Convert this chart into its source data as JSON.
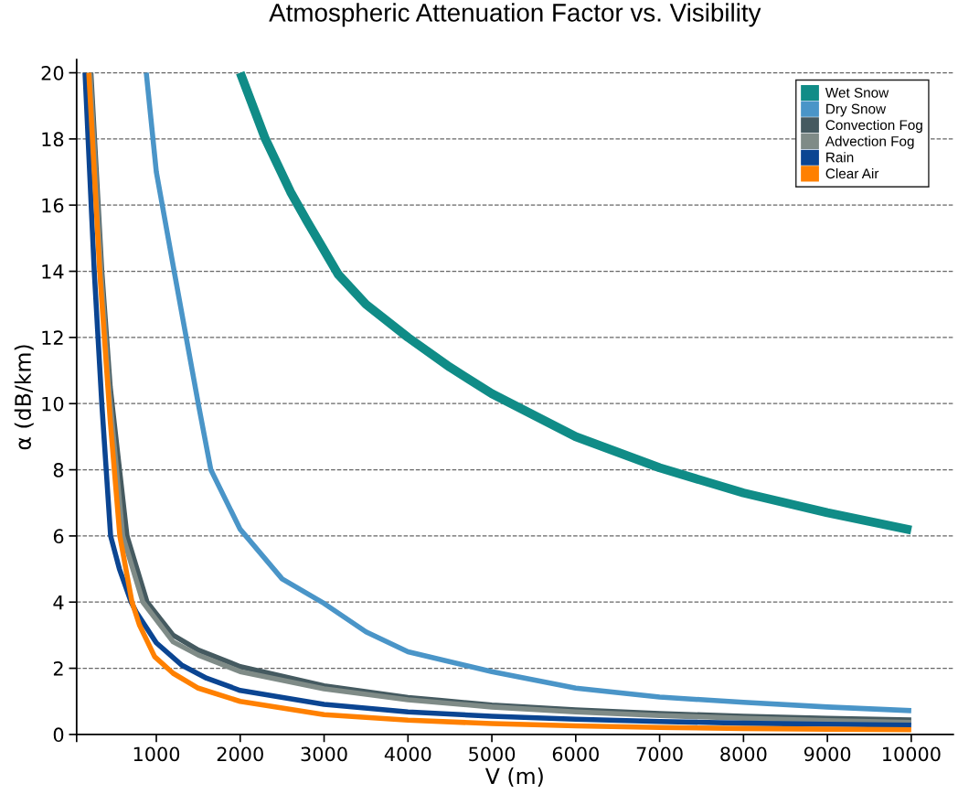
{
  "chart_data": {
    "type": "line",
    "title": "Atmospheric Attenuation Factor vs. Visibility",
    "xlabel": "V (m)",
    "ylabel": "α (dB/km)",
    "xlim": [
      50,
      10500
    ],
    "ylim": [
      0,
      20.4
    ],
    "xticks": [
      {
        "value": 50,
        "label": null
      },
      1000,
      2000,
      3000,
      4000,
      5000,
      6000,
      7000,
      8000,
      9000,
      10000
    ],
    "yticks": [
      0,
      2,
      4,
      6,
      8,
      10,
      12,
      14,
      16,
      18,
      20
    ],
    "grid": "y",
    "legend": "top right",
    "line_style": "solid",
    "marker": "none",
    "series": [
      {
        "name": "Wet Snow",
        "color": "#108c87",
        "x": [
          2000,
          2300,
          2600,
          2800,
          3170,
          3500,
          4000,
          4500,
          5000,
          6000,
          7000,
          8000,
          9000,
          10000
        ],
        "values": [
          20,
          18.0,
          16.4,
          15.5,
          13.9,
          13.0,
          12.0,
          11.1,
          10.3,
          9.0,
          8.06,
          7.3,
          6.7,
          6.18
        ]
      },
      {
        "name": "Dry Snow",
        "color": "#4a95c8",
        "x": [
          880,
          1000,
          1220,
          1500,
          1650,
          2000,
          2500,
          3000,
          3500,
          4000,
          5000,
          6000,
          7000,
          8000,
          9000,
          10000
        ],
        "values": [
          20,
          17.0,
          13.9,
          10.0,
          8.0,
          6.2,
          4.7,
          3.96,
          3.1,
          2.5,
          1.9,
          1.4,
          1.13,
          0.97,
          0.83,
          0.72
        ]
      },
      {
        "name": "Convection Fog",
        "color": "#455a60",
        "x": [
          220,
          350,
          450,
          650,
          890,
          1200,
          1500,
          2000,
          3000,
          4000,
          5000,
          6000,
          7000,
          8000,
          9000,
          10000
        ],
        "values": [
          20,
          14,
          10.5,
          6.0,
          4.0,
          3.0,
          2.55,
          2.05,
          1.47,
          1.12,
          0.89,
          0.74,
          0.63,
          0.55,
          0.49,
          0.44
        ]
      },
      {
        "name": "Advection Fog",
        "color": "#7f8b87",
        "x": [
          210,
          340,
          440,
          600,
          840,
          1200,
          1500,
          2000,
          3000,
          4000,
          5000,
          6000,
          7000,
          8000,
          9000,
          10000
        ],
        "values": [
          20,
          14,
          10.3,
          6.0,
          4.0,
          2.8,
          2.4,
          1.9,
          1.38,
          1.05,
          0.83,
          0.68,
          0.57,
          0.49,
          0.42,
          0.36
        ]
      },
      {
        "name": "Rain",
        "color": "#0b4592",
        "x": [
          150,
          260,
          350,
          455,
          560,
          700,
          760,
          1000,
          1300,
          1600,
          2000,
          3000,
          4000,
          5000,
          6000,
          7000,
          8000,
          9000,
          10000
        ],
        "values": [
          20,
          14,
          10,
          6.0,
          5.0,
          4.0,
          3.7,
          2.77,
          2.1,
          1.7,
          1.33,
          0.91,
          0.68,
          0.55,
          0.46,
          0.39,
          0.34,
          0.31,
          0.28
        ]
      },
      {
        "name": "Clear Air",
        "color": "#ff8000",
        "x": [
          195,
          325,
          450,
          565,
          710,
          800,
          980,
          1200,
          1500,
          2000,
          3000,
          4000,
          5000,
          6000,
          7000,
          8000,
          9000,
          10000
        ],
        "values": [
          20,
          14,
          9.5,
          6.0,
          4.0,
          3.3,
          2.35,
          1.85,
          1.4,
          1.0,
          0.6,
          0.43,
          0.33,
          0.26,
          0.21,
          0.18,
          0.16,
          0.14
        ]
      }
    ]
  }
}
